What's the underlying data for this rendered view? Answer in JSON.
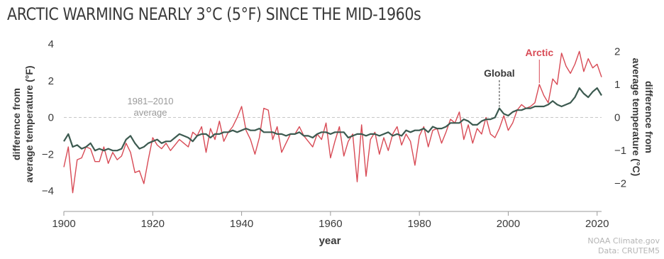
{
  "title": "ARCTIC WARMING NEARLY 3°C (5°F) SINCE THE MID-1960s",
  "credit": {
    "line1": "NOAA Climate.gov",
    "line2": "Data: CRUTEM5"
  },
  "colors": {
    "arctic": "#d84a55",
    "global": "#3c5a50",
    "baseline": "#c8c8c8",
    "text": "#3a3a3a"
  },
  "chart_data": {
    "type": "line",
    "xlabel": "year",
    "ylabel_left": [
      "difference from",
      "average temperature (°F)"
    ],
    "ylabel_right": [
      "difference from",
      "average temperature (°C)"
    ],
    "xlim": [
      1900,
      2021
    ],
    "ylim_f": [
      -5,
      4
    ],
    "ylim_c": [
      -2.78,
      2.22
    ],
    "x_ticks": [
      1900,
      1920,
      1940,
      1960,
      1980,
      2000,
      2020
    ],
    "y_ticks_left": [
      4,
      2,
      0,
      -2,
      -4
    ],
    "y_ticks_right": [
      2,
      1,
      0,
      -1,
      -2
    ],
    "grid": false,
    "baseline_label": [
      "1981–2010",
      "average"
    ],
    "x": [
      1900,
      1901,
      1902,
      1903,
      1904,
      1905,
      1906,
      1907,
      1908,
      1909,
      1910,
      1911,
      1912,
      1913,
      1914,
      1915,
      1916,
      1917,
      1918,
      1919,
      1920,
      1921,
      1922,
      1923,
      1924,
      1925,
      1926,
      1927,
      1928,
      1929,
      1930,
      1931,
      1932,
      1933,
      1934,
      1935,
      1936,
      1937,
      1938,
      1939,
      1940,
      1941,
      1942,
      1943,
      1944,
      1945,
      1946,
      1947,
      1948,
      1949,
      1950,
      1951,
      1952,
      1953,
      1954,
      1955,
      1956,
      1957,
      1958,
      1959,
      1960,
      1961,
      1962,
      1963,
      1964,
      1965,
      1966,
      1967,
      1968,
      1969,
      1970,
      1971,
      1972,
      1973,
      1974,
      1975,
      1976,
      1977,
      1978,
      1979,
      1980,
      1981,
      1982,
      1983,
      1984,
      1985,
      1986,
      1987,
      1988,
      1989,
      1990,
      1991,
      1992,
      1993,
      1994,
      1995,
      1996,
      1997,
      1998,
      1999,
      2000,
      2001,
      2002,
      2003,
      2004,
      2005,
      2006,
      2007,
      2008,
      2009,
      2010,
      2011,
      2012,
      2013,
      2014,
      2015,
      2016,
      2017,
      2018,
      2019,
      2020,
      2021
    ],
    "series": [
      {
        "name": "Arctic",
        "units": "°F",
        "values": [
          -2.7,
          -1.6,
          -4.1,
          -2.3,
          -2.2,
          -1.6,
          -1.7,
          -2.4,
          -2.4,
          -1.6,
          -2.5,
          -1.9,
          -2.3,
          -2.1,
          -1.4,
          -1.9,
          -3.0,
          -2.9,
          -3.6,
          -2.3,
          -1.1,
          -1.5,
          -1.7,
          -1.4,
          -1.8,
          -1.5,
          -1.2,
          -1.4,
          -1.6,
          -0.8,
          -1.0,
          -0.5,
          -1.9,
          -0.6,
          -1.2,
          -0.2,
          -1.3,
          -0.8,
          -0.5,
          0.0,
          0.6,
          -0.7,
          -1.2,
          -2.0,
          -1.1,
          0.5,
          0.4,
          -1.2,
          -0.5,
          -1.9,
          -1.4,
          -0.9,
          -0.9,
          -0.5,
          -1.0,
          -1.3,
          -1.6,
          -0.9,
          -1.2,
          -0.3,
          -2.2,
          -1.3,
          -0.5,
          -2.1,
          -1.3,
          -0.9,
          -3.5,
          -0.4,
          -3.2,
          -1.2,
          -0.8,
          -2.0,
          -1.1,
          -1.8,
          -0.9,
          -0.5,
          -1.5,
          -0.9,
          -1.3,
          -2.6,
          -1.0,
          -0.5,
          -1.6,
          -0.7,
          -0.6,
          -1.4,
          -0.8,
          -0.1,
          -0.3,
          0.3,
          -1.2,
          -0.4,
          -1.4,
          -0.6,
          -0.9,
          0.0,
          -0.9,
          -1.1,
          -0.6,
          0.1,
          -0.7,
          -0.3,
          0.4,
          0.7,
          0.5,
          0.6,
          0.8,
          1.8,
          1.2,
          0.8,
          2.1,
          1.8,
          3.5,
          2.8,
          2.4,
          2.9,
          3.6,
          2.5,
          3.2,
          2.7,
          2.9,
          2.2
        ]
      },
      {
        "name": "Global",
        "units": "°F",
        "values": [
          -1.3,
          -0.9,
          -1.6,
          -1.5,
          -1.7,
          -1.6,
          -1.4,
          -1.8,
          -1.7,
          -1.8,
          -1.7,
          -1.8,
          -1.8,
          -1.7,
          -1.2,
          -1.0,
          -1.4,
          -1.7,
          -1.6,
          -1.4,
          -1.3,
          -1.2,
          -1.4,
          -1.3,
          -1.3,
          -1.1,
          -0.9,
          -1.0,
          -1.1,
          -1.3,
          -1.0,
          -0.9,
          -0.9,
          -1.1,
          -0.9,
          -0.9,
          -0.8,
          -0.8,
          -0.7,
          -0.8,
          -0.7,
          -0.6,
          -0.7,
          -0.7,
          -0.6,
          -0.8,
          -0.8,
          -0.8,
          -0.9,
          -0.9,
          -1.0,
          -0.9,
          -0.9,
          -0.8,
          -1.0,
          -1.0,
          -1.1,
          -0.9,
          -0.8,
          -0.8,
          -0.9,
          -0.8,
          -0.8,
          -0.8,
          -1.1,
          -1.0,
          -0.9,
          -0.9,
          -1.0,
          -0.9,
          -0.9,
          -1.0,
          -0.9,
          -0.8,
          -1.0,
          -0.9,
          -1.0,
          -0.7,
          -0.8,
          -0.7,
          -0.7,
          -0.6,
          -0.8,
          -0.5,
          -0.6,
          -0.6,
          -0.5,
          -0.3,
          -0.3,
          -0.3,
          -0.1,
          -0.2,
          -0.4,
          -0.4,
          -0.2,
          -0.1,
          -0.1,
          0.0,
          0.5,
          0.2,
          0.1,
          0.3,
          0.4,
          0.4,
          0.5,
          0.5,
          0.6,
          0.6,
          0.6,
          0.7,
          0.9,
          0.7,
          0.6,
          0.7,
          0.8,
          1.1,
          1.6,
          1.3,
          1.1,
          1.4,
          1.6,
          1.2
        ]
      }
    ]
  }
}
